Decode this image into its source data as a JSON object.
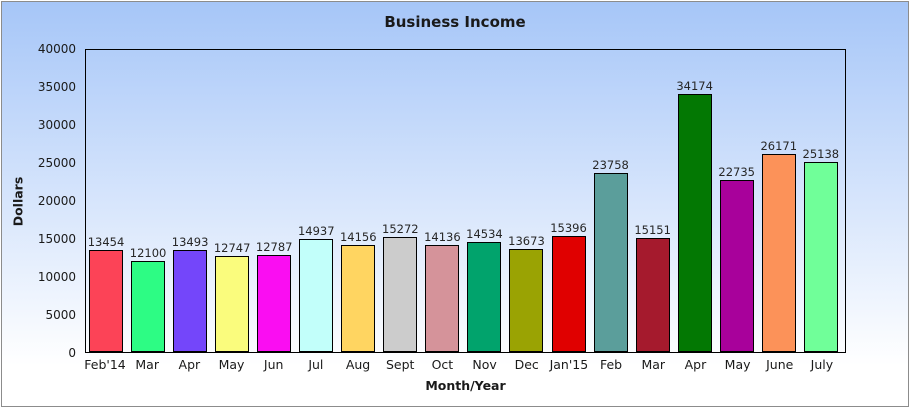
{
  "window": {
    "border_color": "#8c8c8c",
    "background_top_color": "#a6c6f8",
    "background_bottom_color": "#ffffff",
    "plot_frame_color": "#000000"
  },
  "chart_data": {
    "type": "bar",
    "title": "Business Income",
    "xlabel": "Month/Year",
    "ylabel": "Dollars",
    "ylim": [
      0,
      40000
    ],
    "ytick_interval": 5000,
    "yticks": [
      0,
      5000,
      10000,
      15000,
      20000,
      25000,
      30000,
      35000,
      40000
    ],
    "grid": false,
    "legend": "none",
    "value_labels_shown": true,
    "categories": [
      "Feb'14",
      "Mar",
      "Apr",
      "May",
      "Jun",
      "Jul",
      "Aug",
      "Sept",
      "Oct",
      "Nov",
      "Dec",
      "Jan'15",
      "Feb",
      "Mar",
      "Apr",
      "May",
      "June",
      "July"
    ],
    "values": [
      13454,
      12100,
      13493,
      12747,
      12787,
      14937,
      14156,
      15272,
      14136,
      14534,
      13673,
      15396,
      23758,
      15151,
      34174,
      22735,
      26171,
      25138
    ],
    "bar_colors": [
      "#fc4357",
      "#2dfc84",
      "#7446fa",
      "#fafc7d",
      "#fa0df2",
      "#c2fffa",
      "#ffd561",
      "#cccccc",
      "#d5939a",
      "#01a36c",
      "#9aa303",
      "#e00000",
      "#5b9e9b",
      "#a51a2d",
      "#037803",
      "#a8019b",
      "#fc9259",
      "#70ff99"
    ]
  }
}
